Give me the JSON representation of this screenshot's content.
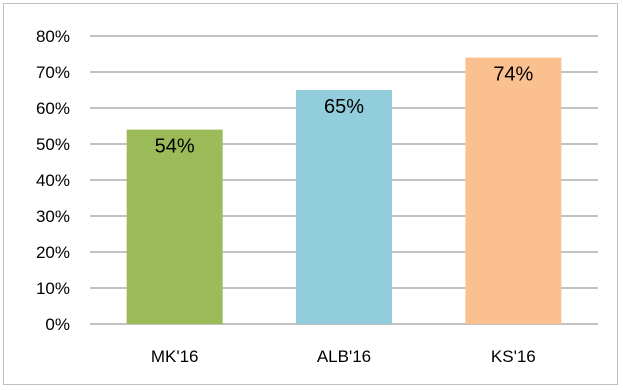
{
  "chart_data": {
    "type": "bar",
    "categories": [
      "MK'16",
      "ALB'16",
      "KS'16"
    ],
    "values": [
      54,
      65,
      74
    ],
    "value_labels": [
      "54%",
      "65%",
      "74%"
    ],
    "colors": [
      "#9bbb59",
      "#92cddc",
      "#fac090"
    ],
    "ylim": [
      0,
      80
    ],
    "y_ticks": [
      0,
      10,
      20,
      30,
      40,
      50,
      60,
      70,
      80
    ],
    "y_tick_labels": [
      "0%",
      "10%",
      "20%",
      "30%",
      "40%",
      "50%",
      "60%",
      "70%",
      "80%"
    ],
    "grid": true,
    "legend": "none",
    "gridline_color": "#868686"
  }
}
